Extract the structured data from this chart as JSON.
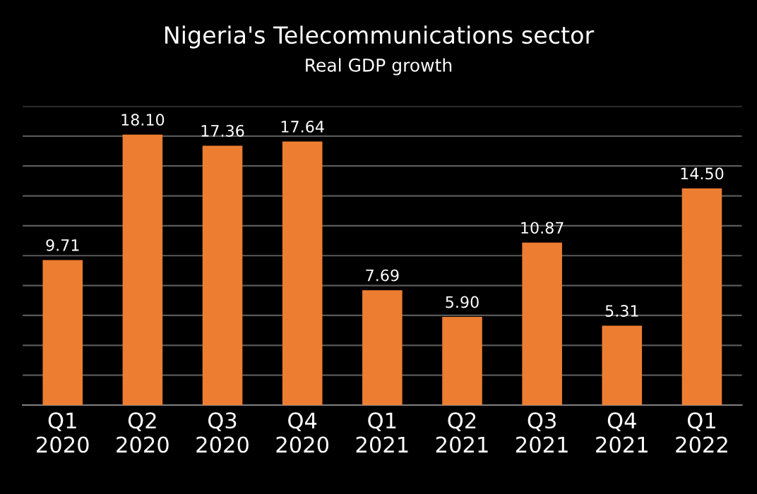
{
  "chart_data": {
    "type": "bar",
    "title": "Nigeria's Telecommunications sector",
    "subtitle": "Real GDP growth",
    "categories": [
      "Q1\n2020",
      "Q2\n2020",
      "Q3\n2020",
      "Q4\n2020",
      "Q1\n2021",
      "Q2\n2021",
      "Q3\n2021",
      "Q4\n2021",
      "Q1\n2022"
    ],
    "values": [
      9.71,
      18.1,
      17.36,
      17.64,
      7.69,
      5.9,
      10.87,
      5.31,
      14.5
    ],
    "value_labels": [
      "9.71",
      "18.10",
      "17.36",
      "17.64",
      "7.69",
      "5.90",
      "10.87",
      "5.31",
      "14.50"
    ],
    "color": "#ed7d31",
    "ylim": [
      0,
      20
    ],
    "yticks": [
      {
        "value": 0,
        "label": null
      },
      {
        "value": 2,
        "label": null
      },
      {
        "value": 4,
        "label": null
      },
      {
        "value": 6,
        "label": null
      },
      {
        "value": 8,
        "label": null
      },
      {
        "value": 10,
        "label": null
      },
      {
        "value": 12,
        "label": null
      },
      {
        "value": 14,
        "label": null
      },
      {
        "value": 16,
        "label": null
      },
      {
        "value": 18,
        "label": null
      },
      {
        "value": 20,
        "label": null
      }
    ],
    "grid": "y",
    "tick_labels": "x"
  }
}
